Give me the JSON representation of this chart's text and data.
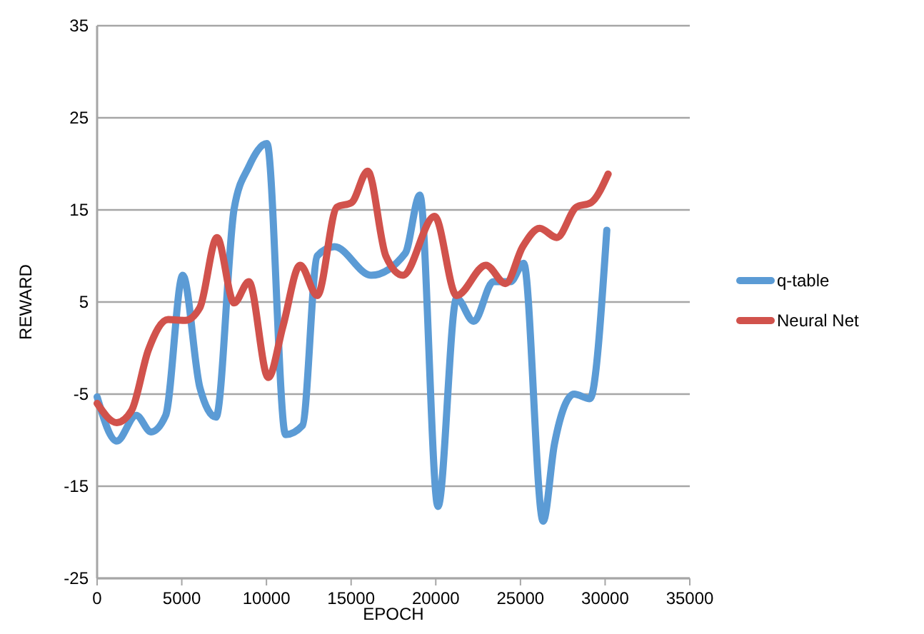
{
  "chart_data": {
    "type": "line",
    "xlabel": "EPOCH",
    "ylabel": "REWARD",
    "xlim": [
      0,
      35000
    ],
    "xticks": [
      0,
      5000,
      10000,
      15000,
      20000,
      25000,
      30000,
      35000
    ],
    "ylim": [
      -25,
      35
    ],
    "yticks": [
      -25,
      -15,
      -5,
      5,
      15,
      25,
      35
    ],
    "grid": "y",
    "legend": "right",
    "marker": "none",
    "line_style": "solid",
    "series": [
      {
        "name": "q-table",
        "color": "#5b9bd5",
        "x": [
          0,
          1160,
          2310,
          3180,
          4050,
          5060,
          6070,
          7020,
          8090,
          8960,
          10030,
          11130,
          12130,
          13000,
          14010,
          16180,
          18200,
          19060,
          20130,
          21230,
          22240,
          23400,
          24410,
          25190,
          26340,
          27010,
          28170,
          29100,
          30100
        ],
        "values": [
          -5.3,
          -10.1,
          -7.3,
          -9.1,
          -7.3,
          7.9,
          -4.3,
          -7.5,
          15.1,
          19.7,
          22.2,
          -9.4,
          -8.4,
          10,
          11,
          7.9,
          10.3,
          16.6,
          -17.2,
          5.4,
          2.9,
          7.2,
          7.2,
          9.2,
          -18.8,
          -10.4,
          -5,
          -5.5,
          12.8
        ]
      },
      {
        "name": "Neural Net",
        "color": "#d1524c",
        "x": [
          0,
          1160,
          2030,
          3030,
          4190,
          5200,
          6070,
          7080,
          8090,
          8960,
          10110,
          10980,
          11990,
          13000,
          14160,
          15030,
          15980,
          17050,
          18060,
          19930,
          21230,
          22960,
          24120,
          25130,
          26140,
          27150,
          28300,
          29170,
          30180
        ],
        "values": [
          -6,
          -8.1,
          -6.8,
          -0.2,
          3.1,
          3,
          4.4,
          12,
          4.9,
          7.2,
          -3.2,
          2.4,
          9,
          5.7,
          15.3,
          15.8,
          19.2,
          10,
          7.9,
          14.3,
          5.7,
          9,
          7,
          11,
          13,
          12,
          15.3,
          15.8,
          18.9
        ]
      }
    ]
  }
}
